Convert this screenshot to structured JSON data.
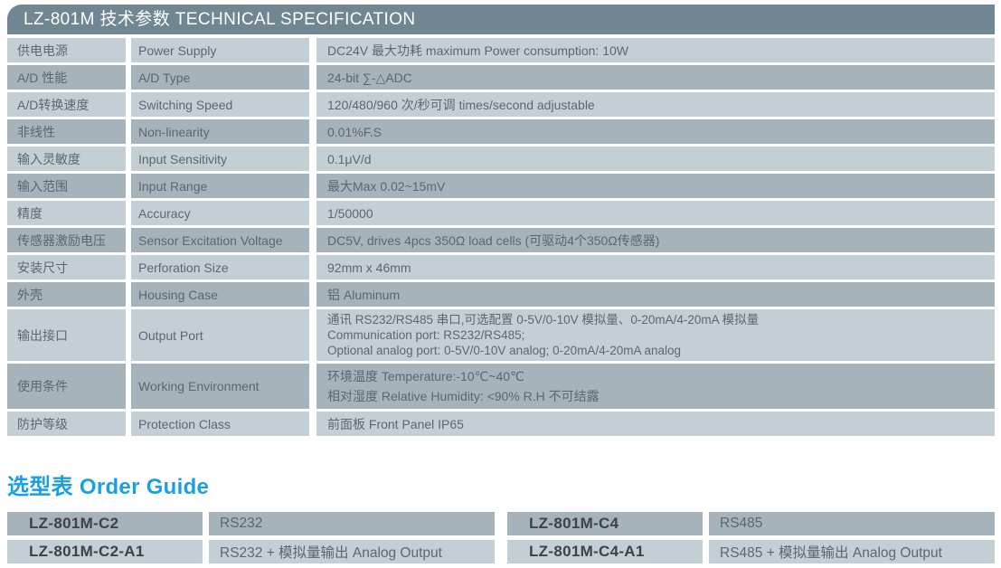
{
  "header": {
    "title": "LZ-801M 技术参数 TECHNICAL SPECIFICATION"
  },
  "spec_table": {
    "rows": [
      {
        "cn": "供电电源",
        "en": "Power Supply",
        "lines": [
          "DC24V  最大功耗 maximum Power consumption: 10W"
        ]
      },
      {
        "cn": "A/D 性能",
        "en": "A/D Type",
        "lines": [
          "24-bit ∑-△ADC"
        ]
      },
      {
        "cn": "A/D转换速度",
        "en": "Switching Speed",
        "lines": [
          "120/480/960 次/秒可调 times/second adjustable"
        ]
      },
      {
        "cn": "非线性",
        "en": "Non-linearity",
        "lines": [
          "0.01%F.S"
        ]
      },
      {
        "cn": "输入灵敏度",
        "en": "Input Sensitivity",
        "lines": [
          "0.1μV/d"
        ]
      },
      {
        "cn": "输入范围",
        "en": "Input Range",
        "lines": [
          "最大Max 0.02~15mV"
        ]
      },
      {
        "cn": "精度",
        "en": "Accuracy",
        "lines": [
          "1/50000"
        ]
      },
      {
        "cn": "传感器激励电压",
        "en": "Sensor Excitation Voltage",
        "lines": [
          "DC5V, drives 4pcs 350Ω load cells (可驱动4个350Ω传感器)"
        ]
      },
      {
        "cn": "安装尺寸",
        "en": "Perforation Size",
        "lines": [
          "92mm x 46mm"
        ]
      },
      {
        "cn": "外壳",
        "en": "Housing Case",
        "lines": [
          "铝 Aluminum"
        ]
      },
      {
        "cn": "输出接口",
        "en": "Output Port",
        "lines": [
          "通讯 RS232/RS485 串口,可选配置 0-5V/0-10V 模拟量、0-20mA/4-20mA 模拟量",
          "Communication port: RS232/RS485;",
          "Optional analog port: 0-5V/0-10V analog; 0-20mA/4-20mA analog"
        ]
      },
      {
        "cn": "使用条件",
        "en": "Working Environment",
        "lines": [
          "环境温度 Temperature:-10℃~40℃",
          "相对湿度 Relative Humidity: <90% R.H 不可结露"
        ]
      },
      {
        "cn": "防护等级",
        "en": "Protection Class",
        "lines": [
          "前面板 Front Panel IP65"
        ]
      }
    ]
  },
  "order_guide": {
    "title": "选型表 Order Guide",
    "left": {
      "rows": [
        {
          "model": "LZ-801M-C2",
          "desc": "RS232"
        },
        {
          "model": "LZ-801M-C2-A1",
          "desc": "RS232 + 模拟量输出 Analog Output"
        }
      ]
    },
    "right": {
      "rows": [
        {
          "model": "LZ-801M-C4",
          "desc": "RS485"
        },
        {
          "model": "LZ-801M-C4-A1",
          "desc": "RS485 + 模拟量输出 Analog Output"
        }
      ]
    }
  },
  "colors": {
    "header_bar": "#708693",
    "row_light": "#c4cfd5",
    "row_dark": "#a6b3bb",
    "text": "#5b6770",
    "model_text": "#3b4348",
    "accent_blue": "#18a0e4"
  }
}
